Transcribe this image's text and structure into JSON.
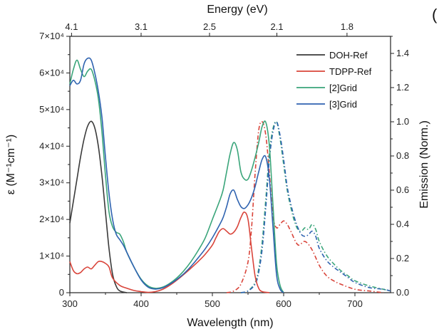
{
  "chart_data": {
    "type": "line",
    "left_axis": {
      "title": "ε (M⁻¹cm⁻¹)",
      "range": [
        0,
        70000
      ],
      "ticks": [
        0,
        10000,
        20000,
        30000,
        40000,
        50000,
        60000,
        70000
      ],
      "tick_labels": [
        "0",
        "1×10⁴",
        "2×10⁴",
        "3×10⁴",
        "4×10⁴",
        "5×10⁴",
        "6×10⁴",
        "7×10⁴"
      ]
    },
    "right_axis": {
      "title": "Emission (Norm.)",
      "range": [
        0,
        1.5
      ],
      "ticks": [
        0,
        0.2,
        0.4,
        0.6,
        0.8,
        1.0,
        1.2,
        1.4
      ],
      "tick_labels": [
        "0.0",
        "0.2",
        "0.4",
        "0.6",
        "0.8",
        "1.0",
        "1.2",
        "1.4"
      ]
    },
    "bottom_axis": {
      "title": "Wavelength (nm)",
      "range": [
        300,
        750
      ],
      "ticks": [
        300,
        400,
        500,
        600,
        700
      ],
      "tick_labels": [
        "300",
        "400",
        "500",
        "600",
        "700"
      ]
    },
    "top_axis": {
      "title": "Energy (eV)",
      "ticks_wavelength_nm": [
        302.4,
        400,
        496,
        590.5,
        688.9
      ],
      "tick_labels": [
        "4.1",
        "3.1",
        "2.5",
        "2.1",
        "1.8"
      ]
    },
    "legend": {
      "position": "top-right",
      "entries": [
        {
          "name": "DOH-Ref",
          "color": "#3a3a3a"
        },
        {
          "name": "TDPP-Ref",
          "color": "#d9443a"
        },
        {
          "name": "[2]Grid",
          "color": "#3aa57a"
        },
        {
          "name": "[3]Grid",
          "color": "#2f63b0"
        }
      ]
    },
    "panel_label": "(",
    "series": [
      {
        "name": "DOH-Ref",
        "kind": "absorption",
        "axis": "left",
        "color": "#3a3a3a",
        "style": "solid",
        "x": [
          300,
          305,
          310,
          315,
          320,
          325,
          330,
          335,
          340,
          345,
          350,
          355,
          360,
          365,
          370,
          380
        ],
        "y": [
          19000,
          25000,
          31000,
          37000,
          42000,
          45500,
          46800,
          45000,
          40000,
          32000,
          22000,
          12000,
          5000,
          1800,
          500,
          0
        ]
      },
      {
        "name": "TDPP-Ref",
        "kind": "absorption",
        "axis": "left",
        "color": "#d9443a",
        "style": "solid",
        "x": [
          300,
          305,
          310,
          315,
          320,
          325,
          330,
          335,
          340,
          345,
          350,
          355,
          360,
          370,
          380,
          390,
          400,
          410,
          420,
          430,
          440,
          450,
          460,
          470,
          480,
          490,
          500,
          505,
          510,
          515,
          520,
          525,
          530,
          535,
          540,
          545,
          550,
          555,
          560,
          565,
          570,
          580
        ],
        "y": [
          8500,
          6000,
          5200,
          5500,
          6500,
          7000,
          6500,
          7500,
          8500,
          8500,
          8000,
          7000,
          4000,
          2000,
          1200,
          600,
          300,
          100,
          300,
          900,
          2000,
          3400,
          5000,
          6700,
          8500,
          10500,
          13000,
          15000,
          16800,
          17500,
          16800,
          16000,
          16500,
          18000,
          20500,
          22000,
          20000,
          12000,
          4500,
          1200,
          300,
          0
        ]
      },
      {
        "name": "[2]Grid",
        "kind": "absorption",
        "axis": "left",
        "color": "#3aa57a",
        "style": "solid",
        "x": [
          300,
          305,
          310,
          315,
          320,
          325,
          330,
          335,
          340,
          345,
          350,
          355,
          360,
          365,
          370,
          375,
          380,
          390,
          400,
          410,
          420,
          430,
          440,
          450,
          460,
          470,
          480,
          490,
          500,
          510,
          515,
          520,
          525,
          530,
          535,
          540,
          545,
          550,
          555,
          560,
          565,
          570,
          575,
          580,
          585,
          590,
          595,
          600
        ],
        "y": [
          57000,
          61000,
          63500,
          61000,
          59000,
          60500,
          61000,
          58000,
          53000,
          44000,
          32000,
          22000,
          18000,
          16500,
          16000,
          14000,
          11000,
          7000,
          3700,
          1800,
          1200,
          1500,
          2500,
          4000,
          6000,
          8500,
          11500,
          15000,
          20000,
          25000,
          28000,
          33000,
          38000,
          41000,
          39000,
          33000,
          31000,
          31000,
          33500,
          37000,
          41000,
          45500,
          46500,
          40000,
          24000,
          8000,
          2000,
          0
        ]
      },
      {
        "name": "[3]Grid",
        "kind": "absorption",
        "axis": "left",
        "color": "#2f63b0",
        "style": "solid",
        "x": [
          300,
          305,
          310,
          315,
          320,
          325,
          330,
          335,
          340,
          345,
          350,
          355,
          360,
          365,
          370,
          375,
          380,
          390,
          400,
          410,
          420,
          430,
          440,
          450,
          460,
          470,
          480,
          490,
          500,
          510,
          515,
          520,
          525,
          530,
          535,
          540,
          545,
          550,
          555,
          560,
          565,
          570,
          575,
          580,
          585,
          590,
          595,
          600
        ],
        "y": [
          56500,
          58000,
          57000,
          58000,
          62500,
          64000,
          63500,
          60000,
          55000,
          48000,
          37000,
          27000,
          20000,
          16000,
          14500,
          13000,
          11000,
          7000,
          3500,
          1500,
          1000,
          1300,
          2300,
          3600,
          5200,
          7200,
          9500,
          12000,
          15000,
          18500,
          20500,
          23500,
          27000,
          28000,
          25500,
          23500,
          23000,
          24000,
          26000,
          29000,
          33000,
          36500,
          37000,
          31000,
          18000,
          5000,
          1000,
          0
        ]
      },
      {
        "name": "TDPP-Ref emission",
        "kind": "emission",
        "axis": "right",
        "color": "#d9443a",
        "style": "dashdot",
        "x": [
          520,
          530,
          540,
          550,
          555,
          560,
          565,
          570,
          575,
          580,
          585,
          590,
          595,
          600,
          605,
          610,
          620,
          630,
          640,
          650,
          660,
          670,
          680,
          700,
          720,
          740
        ],
        "y": [
          0,
          0.01,
          0.05,
          0.18,
          0.38,
          0.7,
          0.95,
          1.0,
          0.92,
          0.7,
          0.45,
          0.38,
          0.4,
          0.42,
          0.4,
          0.36,
          0.28,
          0.3,
          0.25,
          0.16,
          0.1,
          0.07,
          0.05,
          0.02,
          0.01,
          0
        ]
      },
      {
        "name": "[2]Grid emission",
        "kind": "emission",
        "axis": "right",
        "color": "#3aa57a",
        "style": "dashdot",
        "x": [
          540,
          550,
          560,
          565,
          570,
          575,
          580,
          585,
          590,
          595,
          600,
          605,
          610,
          615,
          620,
          625,
          630,
          635,
          640,
          645,
          650,
          660,
          670,
          680,
          690,
          700,
          720,
          740,
          750
        ],
        "y": [
          0,
          0.01,
          0.06,
          0.14,
          0.3,
          0.55,
          0.82,
          0.96,
          1.0,
          0.9,
          0.75,
          0.6,
          0.5,
          0.42,
          0.37,
          0.36,
          0.38,
          0.37,
          0.4,
          0.37,
          0.3,
          0.22,
          0.17,
          0.13,
          0.1,
          0.07,
          0.04,
          0.02,
          0.01
        ]
      },
      {
        "name": "[3]Grid emission",
        "kind": "emission",
        "axis": "right",
        "color": "#2f63b0",
        "style": "dashdot",
        "x": [
          540,
          550,
          560,
          565,
          570,
          575,
          580,
          585,
          590,
          595,
          600,
          605,
          610,
          615,
          620,
          625,
          630,
          635,
          640,
          645,
          650,
          660,
          670,
          680,
          690,
          700,
          720,
          740,
          750
        ],
        "y": [
          0,
          0.01,
          0.05,
          0.12,
          0.26,
          0.5,
          0.78,
          0.94,
          1.0,
          0.92,
          0.78,
          0.62,
          0.52,
          0.44,
          0.38,
          0.34,
          0.33,
          0.34,
          0.36,
          0.33,
          0.26,
          0.19,
          0.15,
          0.12,
          0.09,
          0.06,
          0.03,
          0.02,
          0.01
        ]
      }
    ]
  }
}
